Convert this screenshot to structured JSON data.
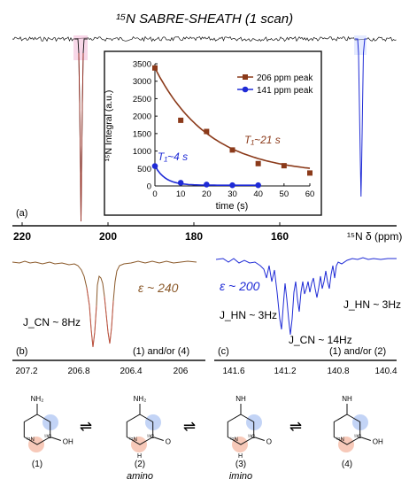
{
  "title": "¹⁵N SABRE-SHEATH (1 scan)",
  "panel_a": {
    "label": "(a)",
    "axis_ticks": [
      "220",
      "200",
      "180",
      "160"
    ],
    "axis_label": "¹⁵N δ (ppm)"
  },
  "chart_data": {
    "type": "scatter",
    "xlabel": "time (s)",
    "ylabel": "¹⁵N Integral (a.u.)",
    "xlim": [
      0,
      60
    ],
    "ylim": [
      0,
      3500
    ],
    "x_ticks": [
      "0",
      "10",
      "20",
      "30",
      "40",
      "50",
      "60"
    ],
    "y_ticks": [
      "0",
      "500",
      "1000",
      "1500",
      "2000",
      "2500",
      "3000",
      "3500"
    ],
    "legend_position": "top-right",
    "colors": {
      "peak206": "#8b3a1a",
      "peak141": "#1f2bd6"
    },
    "series": [
      {
        "name": "206 ppm peak",
        "x": [
          0,
          10,
          20,
          30,
          40,
          50,
          60
        ],
        "y": [
          3380,
          1880,
          1560,
          1030,
          640,
          580,
          370
        ]
      },
      {
        "name": "141 ppm peak",
        "x": [
          0,
          10,
          20,
          30,
          40
        ],
        "y": [
          570,
          90,
          40,
          20,
          20
        ]
      }
    ],
    "annotations": {
      "t1_206": "T₁~21 s",
      "t1_141": "T₁~4 s"
    }
  },
  "panel_b": {
    "label": "(b)",
    "epsilon": "ε ~ 240",
    "jcn": "J_CN ~ 8Hz",
    "assignment": "(1) and/or (4)",
    "ticks": [
      "207.2",
      "206.8",
      "206.4",
      "206"
    ]
  },
  "panel_c": {
    "label": "(c)",
    "epsilon": "ε ~ 200",
    "jhn_left": "J_HN ~ 3Hz",
    "jhn_right": "J_HN ~ 3Hz",
    "jcn": "J_CN ~ 14Hz",
    "assignment": "(1) and/or (2)",
    "ticks": [
      "141.6",
      "141.2",
      "140.8",
      "140.4"
    ]
  },
  "structures": [
    {
      "label": "(1)",
      "caption": "",
      "top": "NH₂",
      "right": "OH",
      "iso_n": "¹⁵N",
      "iso_c": "¹³C"
    },
    {
      "label": "(2)",
      "caption": "amino",
      "top": "NH₂",
      "right": "O",
      "iso_n": "¹⁵N",
      "iso_c": "¹³C",
      "nh": "H"
    },
    {
      "label": "(3)",
      "caption": "imino",
      "top": "NH",
      "right": "O",
      "iso_n": "¹⁵N",
      "iso_c": "¹³C",
      "nh": "H"
    },
    {
      "label": "(4)",
      "caption": "",
      "top": "NH",
      "right": "OH",
      "iso_n": "¹⁵N",
      "iso_c": "¹³C"
    }
  ],
  "equilibrium_symbol": "⇌"
}
